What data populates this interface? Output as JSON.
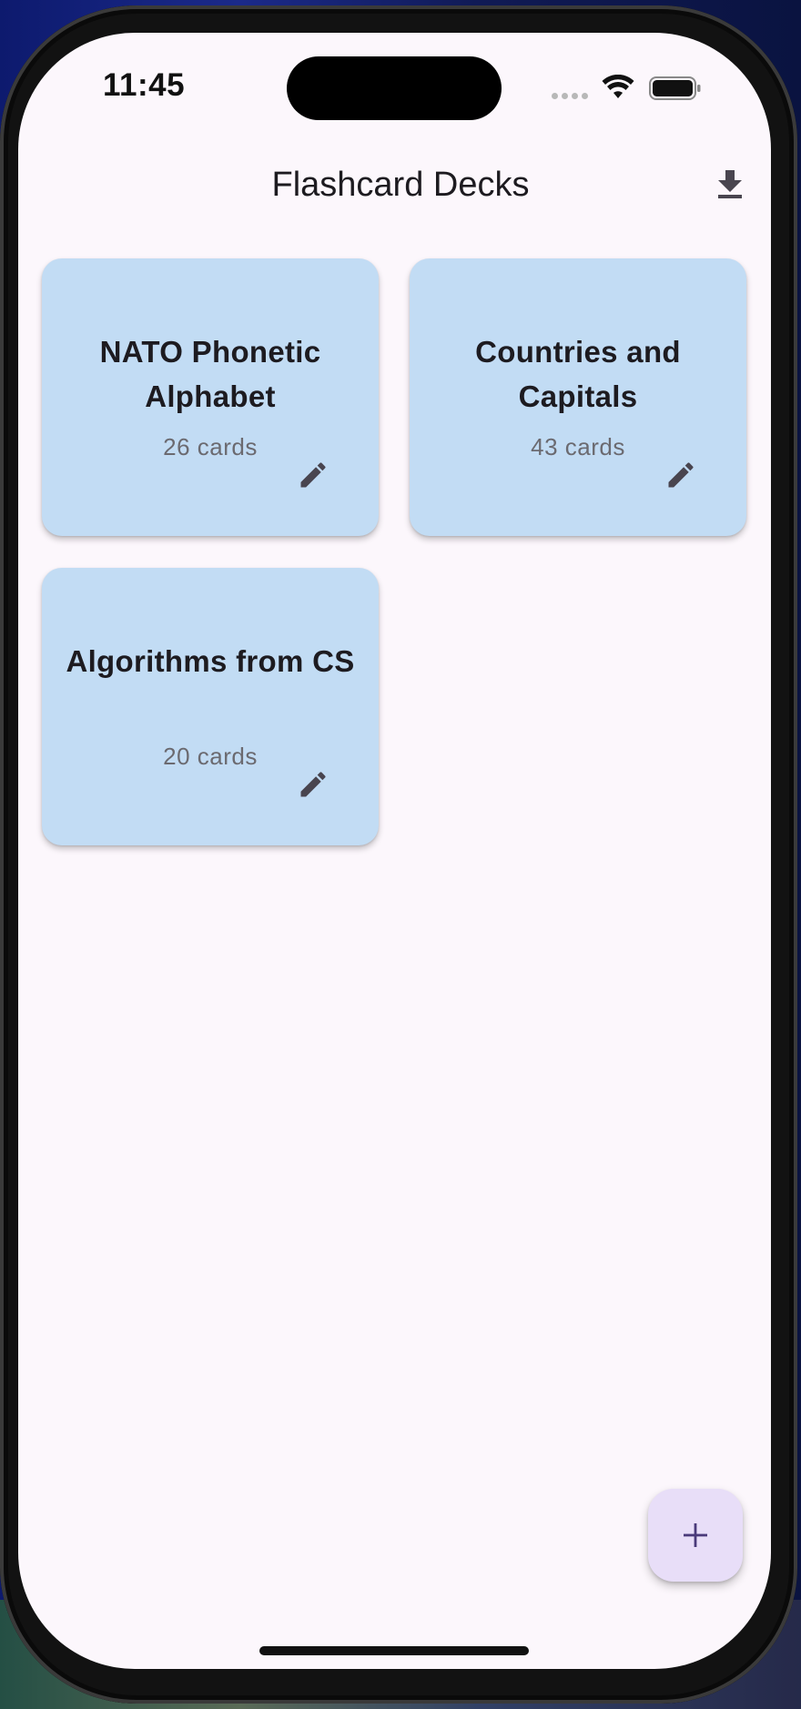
{
  "status_bar": {
    "time": "11:45"
  },
  "app_bar": {
    "title": "Flashcard Decks",
    "download_icon": "download-icon"
  },
  "decks": [
    {
      "title": "NATO Phonetic Alphabet",
      "count": "26 cards",
      "edit_icon": "pencil-icon"
    },
    {
      "title": "Countries and Capitals",
      "count": "43 cards",
      "edit_icon": "pencil-icon"
    },
    {
      "title": "Algorithms from CS",
      "count": "20 cards",
      "edit_icon": "pencil-icon"
    }
  ],
  "fab": {
    "icon": "plus-icon"
  },
  "colors": {
    "background": "#fcf7fc",
    "card": "#c2dcf4",
    "fab": "#e8def8",
    "fab_icon": "#4a3a7a",
    "text_primary": "#1d1b20",
    "text_secondary": "#6b6a70",
    "icon": "#49454f"
  }
}
